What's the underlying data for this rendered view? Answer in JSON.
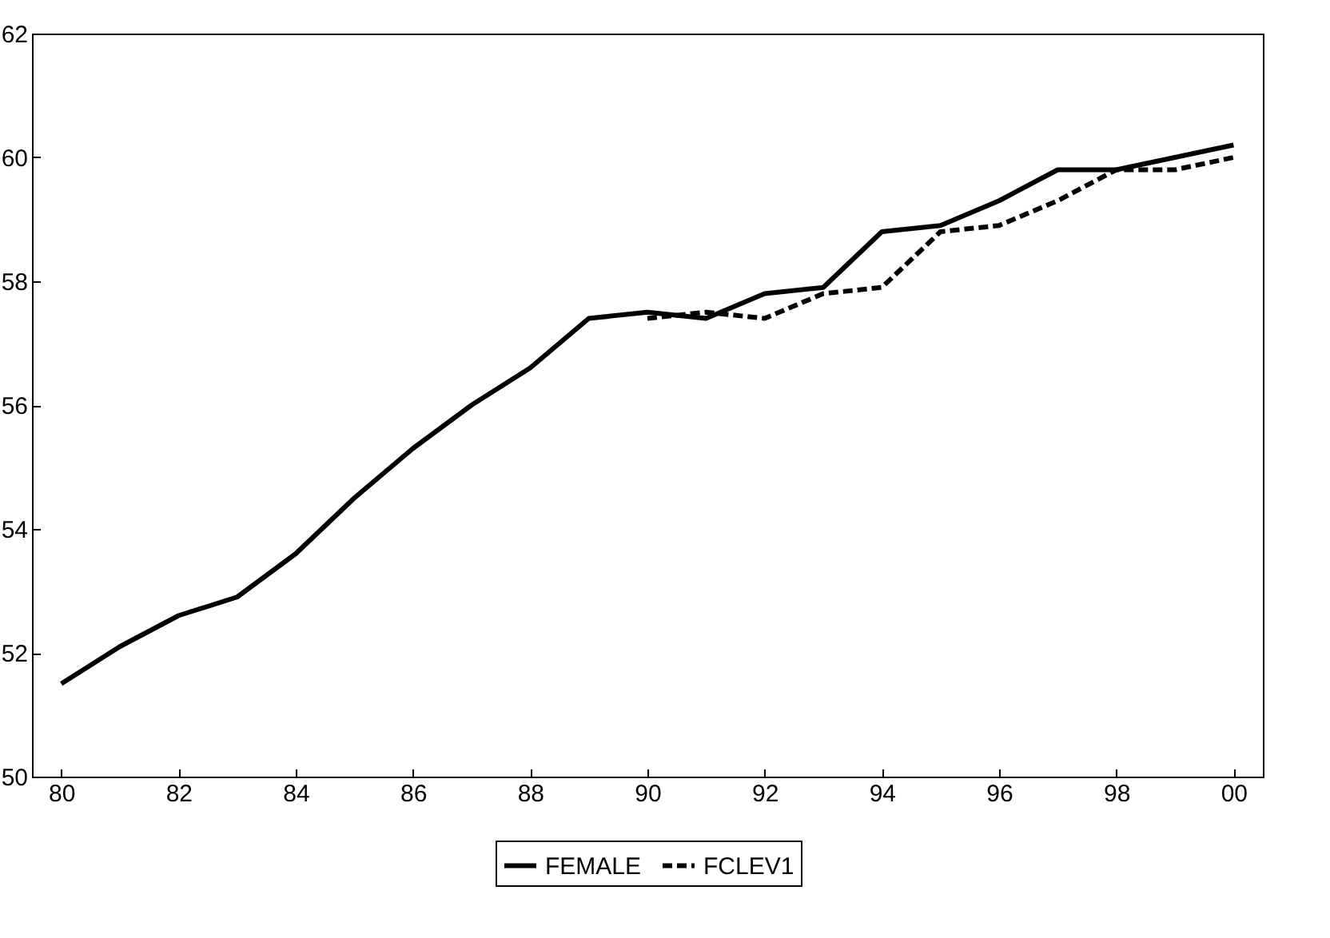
{
  "chart_data": {
    "type": "line",
    "x": [
      1980,
      1981,
      1982,
      1983,
      1984,
      1985,
      1986,
      1987,
      1988,
      1989,
      1990,
      1991,
      1992,
      1993,
      1994,
      1995,
      1996,
      1997,
      1998,
      1999,
      2000
    ],
    "xlim": [
      1979.5,
      2000.5
    ],
    "xticks": [
      {
        "value": 1980,
        "label": "80"
      },
      {
        "value": 1982,
        "label": "82"
      },
      {
        "value": 1984,
        "label": "84"
      },
      {
        "value": 1986,
        "label": "86"
      },
      {
        "value": 1988,
        "label": "88"
      },
      {
        "value": 1990,
        "label": "90"
      },
      {
        "value": 1992,
        "label": "92"
      },
      {
        "value": 1994,
        "label": "94"
      },
      {
        "value": 1996,
        "label": "96"
      },
      {
        "value": 1998,
        "label": "98"
      },
      {
        "value": 2000,
        "label": "00"
      }
    ],
    "ylim": [
      50,
      62
    ],
    "yticks": [
      50,
      52,
      54,
      56,
      58,
      60,
      62
    ],
    "series": [
      {
        "name": "FEMALE",
        "color": "#000000",
        "line_style": "solid",
        "values": [
          51.5,
          52.1,
          52.6,
          52.9,
          53.6,
          54.5,
          55.3,
          56.0,
          56.6,
          57.4,
          57.5,
          57.4,
          57.8,
          57.9,
          58.8,
          58.9,
          59.3,
          59.8,
          59.8,
          60.0,
          60.2
        ]
      },
      {
        "name": "FCLEV1",
        "color": "#000000",
        "line_style": "dashed",
        "values": [
          null,
          null,
          null,
          null,
          null,
          null,
          null,
          null,
          null,
          null,
          57.4,
          57.5,
          57.4,
          57.8,
          57.9,
          58.8,
          58.9,
          59.3,
          59.8,
          59.8,
          60.0
        ]
      }
    ],
    "grid": false,
    "legend": "bottom",
    "marker": "none"
  }
}
